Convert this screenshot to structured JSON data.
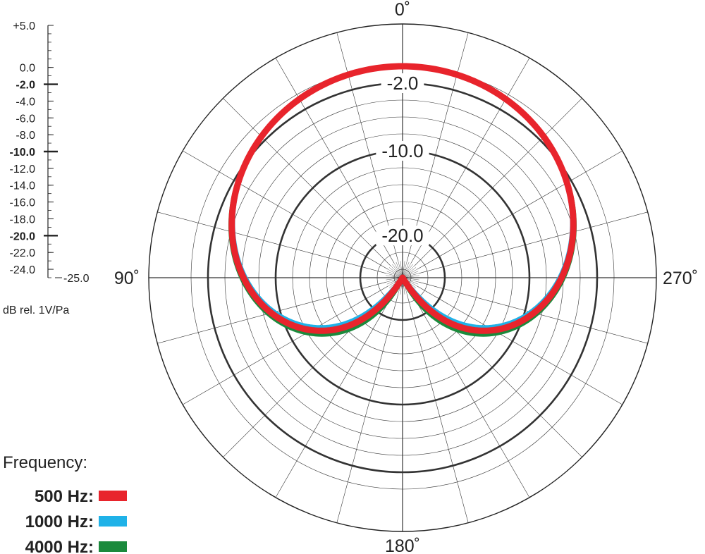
{
  "chart_data": {
    "type": "polar",
    "title": "",
    "unit_label": "dB rel. 1V/Pa",
    "radial_range": [
      -25,
      5
    ],
    "radial_ticks": [
      {
        "value": 5,
        "label": "+5.0",
        "major": false
      },
      {
        "value": 0,
        "label": "0.0",
        "major": false
      },
      {
        "value": -2,
        "label": "-2.0",
        "major": true
      },
      {
        "value": -4,
        "label": "-4.0",
        "major": false
      },
      {
        "value": -6,
        "label": "-6.0",
        "major": false
      },
      {
        "value": -8,
        "label": "-8.0",
        "major": false
      },
      {
        "value": -10,
        "label": "-10.0",
        "major": true
      },
      {
        "value": -12,
        "label": "-12.0",
        "major": false
      },
      {
        "value": -14,
        "label": "-14.0",
        "major": false
      },
      {
        "value": -16,
        "label": "-16.0",
        "major": false
      },
      {
        "value": -18,
        "label": "-18.0",
        "major": false
      },
      {
        "value": -20,
        "label": "-20.0",
        "major": true
      },
      {
        "value": -22,
        "label": "-22.0",
        "major": false
      },
      {
        "value": -24,
        "label": "-24.0",
        "major": false
      },
      {
        "value": -25,
        "label": "-25.0",
        "major": false
      }
    ],
    "ring_labels": [
      {
        "value": -2,
        "label": "-2.0"
      },
      {
        "value": -10,
        "label": "-10.0"
      },
      {
        "value": -20,
        "label": "-20.0"
      }
    ],
    "angle_labels": [
      {
        "angle": 0,
        "label": "0˚"
      },
      {
        "angle": 90,
        "label": "90˚"
      },
      {
        "angle": 180,
        "label": "180˚"
      },
      {
        "angle": 270,
        "label": "270˚"
      }
    ],
    "angular_grid_step_deg": 15,
    "legend_title": "Frequency:",
    "legend_position": "bottom-left",
    "series": [
      {
        "name": "500 Hz:",
        "color": "#e8242c",
        "pattern": "cardioid",
        "front_db": 0,
        "rear_db": -25,
        "side_db": -6.2
      },
      {
        "name": "1000 Hz:",
        "color": "#1fb2e8",
        "pattern": "cardioid",
        "front_db": 0,
        "rear_db": -25,
        "side_db": -6.4
      },
      {
        "name": "4000 Hz:",
        "color": "#1b8a3c",
        "pattern": "cardioid",
        "front_db": 0,
        "rear_db": -25,
        "side_db": -6.0
      }
    ]
  }
}
